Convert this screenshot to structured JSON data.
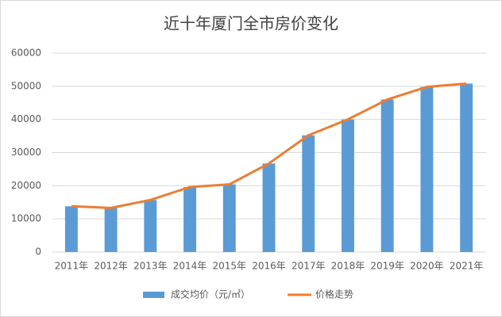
{
  "chart_data": {
    "type": "bar",
    "title": "近十年厦门全市房价变化",
    "categories": [
      "2011年",
      "2012年",
      "2013年",
      "2014年",
      "2015年",
      "2016年",
      "2017年",
      "2018年",
      "2019年",
      "2020年",
      "2021年"
    ],
    "series": [
      {
        "name": "成交均价（元/㎡）",
        "type": "bar",
        "color": "#5b9bd5",
        "values": [
          13800,
          13300,
          15700,
          19600,
          20400,
          26700,
          35200,
          40000,
          46000,
          49800,
          50800
        ]
      },
      {
        "name": "价格走势",
        "type": "line",
        "color": "#ed7d31",
        "values": [
          13800,
          13300,
          15700,
          19600,
          20400,
          26700,
          35200,
          40000,
          46000,
          49800,
          50800
        ]
      }
    ],
    "ylim": [
      0,
      60000
    ],
    "yticks": [
      0,
      10000,
      20000,
      30000,
      40000,
      50000,
      60000
    ],
    "grid": true,
    "legend": "bottom"
  }
}
